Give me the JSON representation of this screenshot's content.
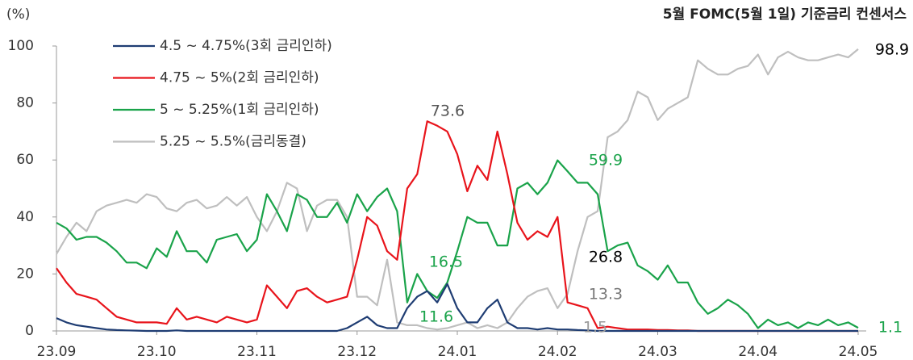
{
  "chart_data": {
    "type": "line",
    "title": "5월 FOMC(5월 1일) 기준금리 컨센서스",
    "y_label": "(%)",
    "categories": [
      "23.09",
      null,
      null,
      null,
      null,
      null,
      null,
      null,
      null,
      null,
      "23.10",
      null,
      null,
      null,
      null,
      null,
      null,
      null,
      null,
      null,
      "23.11",
      null,
      null,
      null,
      null,
      null,
      null,
      null,
      null,
      null,
      "23.12",
      null,
      null,
      null,
      null,
      null,
      null,
      null,
      null,
      null,
      "24.01",
      null,
      null,
      null,
      null,
      null,
      null,
      null,
      null,
      null,
      "24.02",
      null,
      null,
      null,
      null,
      null,
      null,
      null,
      null,
      null,
      "24.03",
      null,
      null,
      null,
      null,
      null,
      null,
      null,
      null,
      null,
      "24.04",
      null,
      null,
      null,
      null,
      null,
      null,
      null,
      null,
      null,
      "24.05"
    ],
    "ylim": [
      0,
      100
    ],
    "yticks": [
      0,
      20,
      40,
      60,
      80,
      100
    ],
    "legend": "top-left",
    "series": [
      {
        "name": "4.5 ~ 4.75%(3회 금리인하)",
        "color": "#1f3d73",
        "values": [
          4.5,
          3,
          2,
          1.5,
          1,
          0.5,
          0.3,
          0.2,
          0.1,
          0,
          0,
          0,
          0.2,
          0,
          0,
          0,
          0,
          0,
          0,
          0,
          0,
          0,
          0,
          0,
          0,
          0,
          0,
          0,
          0,
          1,
          3,
          5,
          2,
          1,
          1,
          8,
          12,
          14,
          10,
          16.5,
          8,
          3,
          3,
          8,
          11,
          3,
          1,
          1,
          0.5,
          1,
          0.5,
          0.5,
          0.3,
          0.2,
          0,
          0,
          0,
          0,
          0,
          0,
          0,
          0,
          0,
          0,
          0,
          0,
          0,
          0,
          0,
          0,
          0,
          0,
          0,
          0,
          0,
          0,
          0,
          0,
          0,
          0,
          0
        ]
      },
      {
        "name": "4.75 ~ 5%(2회 금리인하)",
        "color": "#e8141b",
        "values": [
          22,
          17,
          13,
          12,
          11,
          8,
          5,
          4,
          3,
          3,
          3,
          2.5,
          8,
          4,
          5,
          4,
          3,
          5,
          4,
          3,
          4,
          16,
          12,
          8,
          14,
          15,
          12,
          10,
          11,
          12,
          25,
          40,
          37,
          28,
          25,
          50,
          55,
          73.6,
          72,
          70,
          62,
          49,
          58,
          53,
          70,
          55,
          38,
          32,
          35,
          33,
          40,
          10,
          9,
          8,
          1,
          1.5,
          1,
          0.5,
          0.5,
          0.5,
          0.3,
          0.3,
          0.2,
          0.2,
          0,
          0,
          0,
          0,
          0,
          0,
          0,
          0,
          0,
          0,
          0,
          0,
          0,
          0,
          0,
          0,
          0
        ]
      },
      {
        "name": "5 ~ 5.25%(1회 금리인하)",
        "color": "#1aa34a",
        "values": [
          38,
          36,
          32,
          33,
          33,
          31,
          28,
          24,
          24,
          22,
          29,
          26,
          35,
          28,
          28,
          24,
          32,
          33,
          34,
          28,
          32,
          48,
          42,
          35,
          48,
          46,
          40,
          40,
          45,
          38,
          48,
          42,
          47,
          50,
          42,
          10,
          20,
          14,
          11.6,
          17,
          28,
          40,
          38,
          38,
          30,
          30,
          50,
          52,
          48,
          52,
          59.9,
          56,
          52,
          52,
          48,
          28,
          30,
          31,
          23,
          21,
          18,
          23,
          17,
          17,
          10,
          6,
          8,
          11,
          9,
          6,
          1,
          4,
          2,
          3,
          1,
          3,
          2,
          4,
          2,
          3,
          1.1
        ]
      },
      {
        "name": "5.25 ~ 5.5%(금리동결)",
        "color": "#bfbfbf",
        "values": [
          27,
          33,
          38,
          35,
          42,
          44,
          45,
          46,
          45,
          48,
          47,
          43,
          42,
          45,
          46,
          43,
          44,
          47,
          44,
          47,
          40,
          35,
          42,
          52,
          50,
          35,
          44,
          46,
          46,
          40,
          12,
          12,
          9,
          25,
          3,
          2,
          2,
          1,
          0.5,
          1,
          2,
          3,
          1,
          2,
          1,
          3,
          8,
          12,
          14,
          15,
          8,
          13,
          28,
          40,
          42,
          68,
          70,
          74,
          84,
          82,
          74,
          78,
          80,
          82,
          95,
          92,
          90,
          90,
          92,
          93,
          97,
          90,
          96,
          98,
          96,
          95,
          95,
          96,
          97,
          96,
          98.9
        ]
      }
    ],
    "annotations": [
      {
        "text": "73.6",
        "color": "#555555"
      },
      {
        "text": "16.5",
        "color": "#1aa34a"
      },
      {
        "text": "11.6",
        "color": "#1aa34a"
      },
      {
        "text": "59.9",
        "color": "#1aa34a"
      },
      {
        "text": "26.8",
        "color": "#000000"
      },
      {
        "text": "13.3",
        "color": "#777777"
      },
      {
        "text": "1.5",
        "color": "#999999"
      },
      {
        "text": "98.9",
        "color": "#000000"
      },
      {
        "text": "1.1",
        "color": "#1aa34a"
      }
    ]
  }
}
